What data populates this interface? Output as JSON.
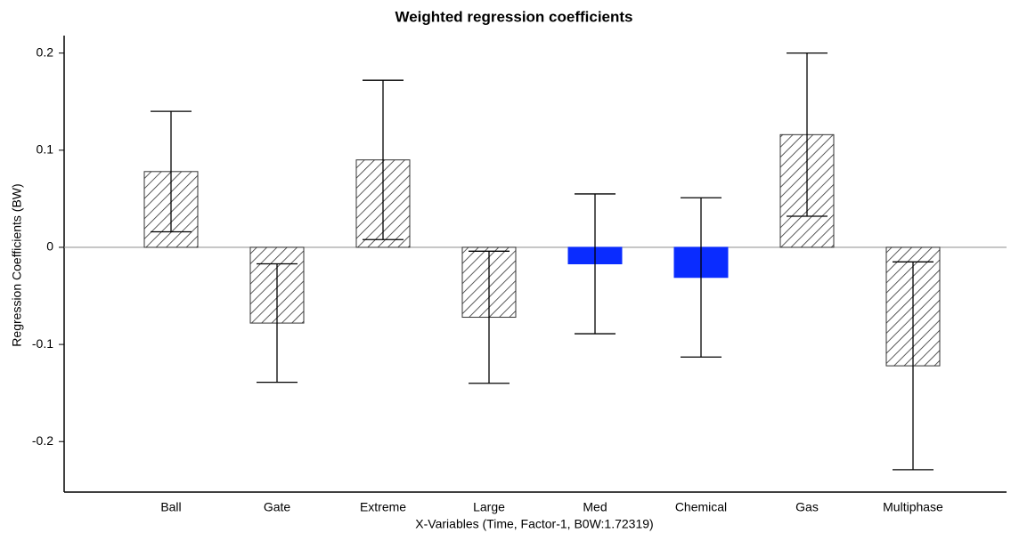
{
  "chart_data": {
    "type": "bar",
    "title": "Weighted regression coefficients",
    "x_label": "X-Variables (Time, Factor-1, B0W:1.72319)",
    "y_label": "Regression Coefficients (BW)",
    "categories": [
      "Ball",
      "Gate",
      "Extreme",
      "Large",
      "Med",
      "Chemical",
      "Gas",
      "Multiphase"
    ],
    "values": [
      0.078,
      -0.078,
      0.09,
      -0.072,
      -0.017,
      -0.031,
      0.116,
      -0.122
    ],
    "errors": [
      0.062,
      0.061,
      0.082,
      0.068,
      0.072,
      0.082,
      0.084,
      0.107
    ],
    "colors": [
      "hatched",
      "hatched",
      "hatched",
      "hatched",
      "#0a2cff",
      "#0a2cff",
      "hatched",
      "hatched"
    ],
    "ylim": [
      -0.252,
      0.218
    ],
    "yticks": [
      -0.2,
      -0.1,
      0,
      0.1,
      0.2
    ]
  }
}
